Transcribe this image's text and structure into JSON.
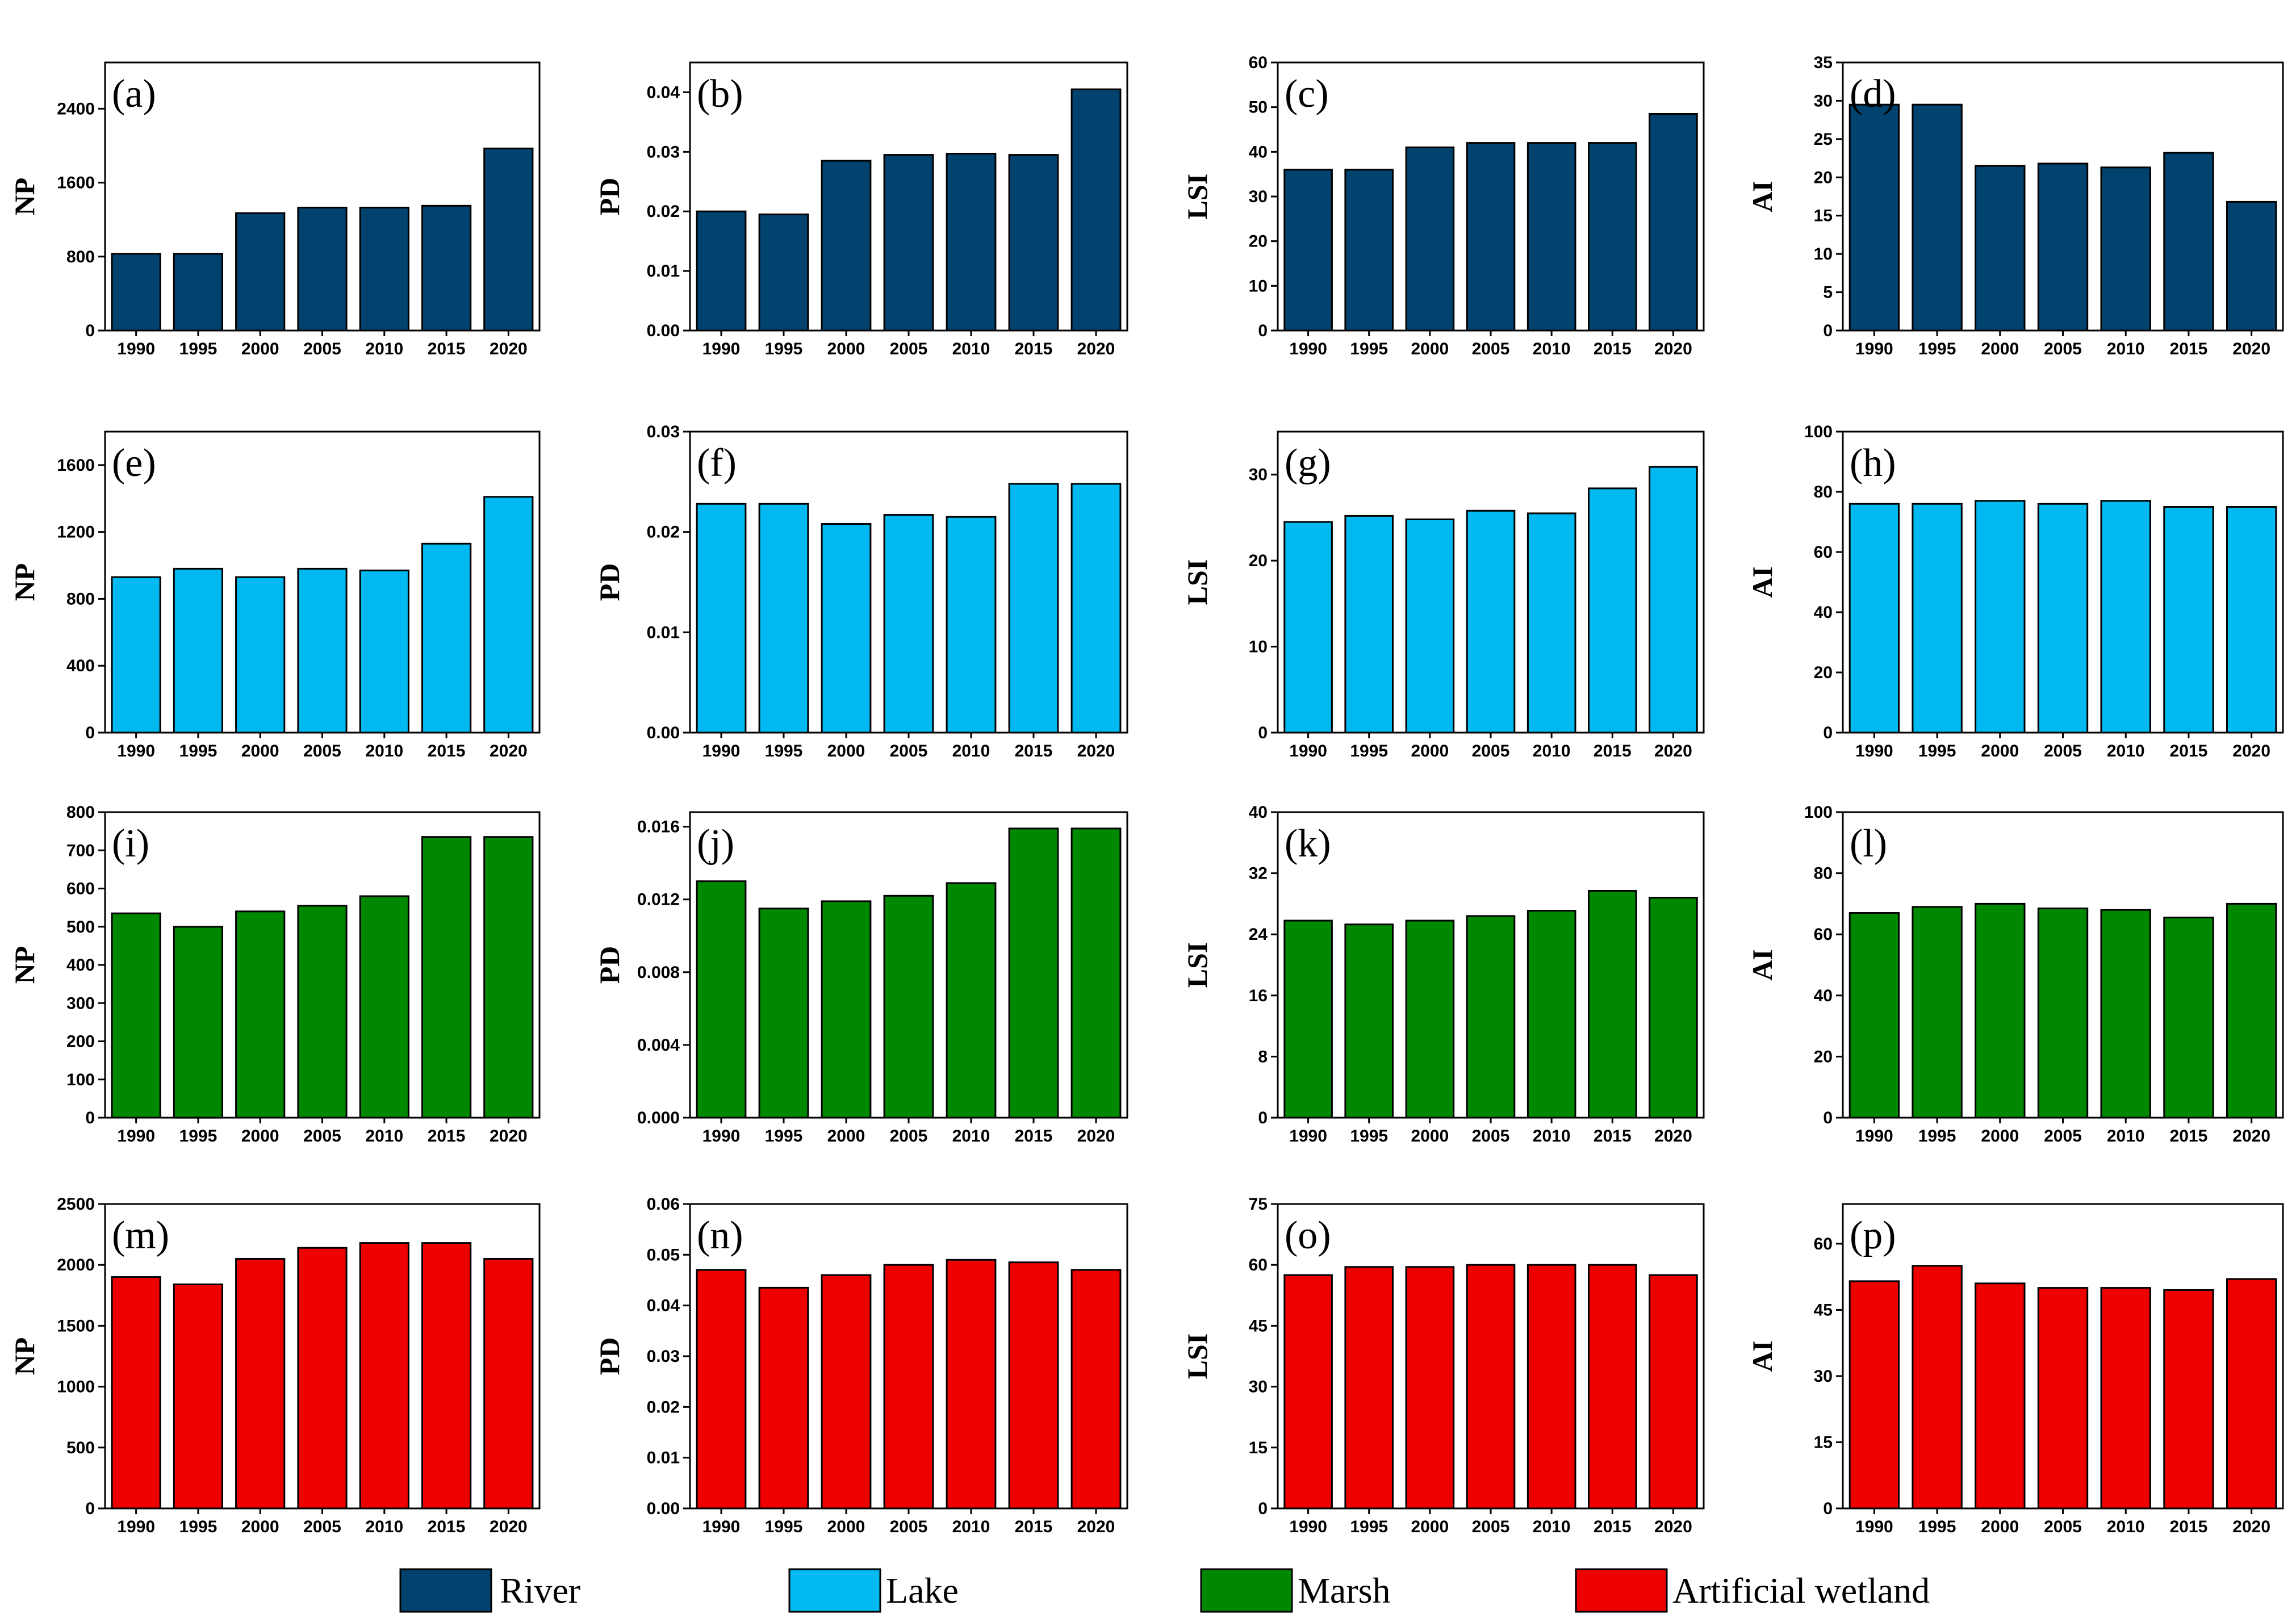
{
  "categories": [
    "1990",
    "1995",
    "2000",
    "2005",
    "2010",
    "2015",
    "2020"
  ],
  "colors": {
    "River": "#02426f",
    "Lake": "#00b9f1",
    "Marsh": "#008800",
    "Artificial wetland": "#ee0000"
  },
  "legend": [
    {
      "name": "River",
      "color": "#02426f"
    },
    {
      "name": "Lake",
      "color": "#00b9f1"
    },
    {
      "name": "Marsh",
      "color": "#008800"
    },
    {
      "name": "Artificial wetland",
      "color": "#ee0000"
    }
  ],
  "chart_data": [
    {
      "type": "bar",
      "panel": "(a)",
      "ylabel": "NP",
      "series": "River",
      "ylim": [
        0,
        2900
      ],
      "yticks": [
        "0",
        "800",
        "1600",
        "2400"
      ],
      "ytick_values": [
        0,
        800,
        1600,
        2400
      ],
      "values": [
        830,
        830,
        1270,
        1330,
        1330,
        1350,
        1970
      ]
    },
    {
      "type": "bar",
      "panel": "(b)",
      "ylabel": "PD",
      "series": "River",
      "ylim": [
        0,
        0.045
      ],
      "yticks": [
        "0.00",
        "0.01",
        "0.02",
        "0.03",
        "0.04"
      ],
      "ytick_values": [
        0,
        0.01,
        0.02,
        0.03,
        0.04
      ],
      "values": [
        0.02,
        0.0195,
        0.0285,
        0.0295,
        0.0297,
        0.0295,
        0.0405
      ]
    },
    {
      "type": "bar",
      "panel": "(c)",
      "ylabel": "LSI",
      "series": "River",
      "ylim": [
        0,
        60
      ],
      "yticks": [
        "0",
        "10",
        "20",
        "30",
        "40",
        "50",
        "60"
      ],
      "ytick_values": [
        0,
        10,
        20,
        30,
        40,
        50,
        60
      ],
      "values": [
        36,
        36,
        41,
        42,
        42,
        42,
        48.5
      ]
    },
    {
      "type": "bar",
      "panel": "(d)",
      "ylabel": "AI",
      "series": "River",
      "ylim": [
        0,
        35
      ],
      "yticks": [
        "0",
        "5",
        "10",
        "15",
        "20",
        "25",
        "30",
        "35"
      ],
      "ytick_values": [
        0,
        5,
        10,
        15,
        20,
        25,
        30,
        35
      ],
      "values": [
        29.5,
        29.5,
        21.5,
        21.8,
        21.3,
        23.2,
        16.8
      ]
    },
    {
      "type": "bar",
      "panel": "(e)",
      "ylabel": "NP",
      "series": "Lake",
      "ylim": [
        0,
        1800
      ],
      "yticks": [
        "0",
        "400",
        "800",
        "1200",
        "1600"
      ],
      "ytick_values": [
        0,
        400,
        800,
        1200,
        1600
      ],
      "values": [
        930,
        980,
        930,
        980,
        970,
        1130,
        1410
      ]
    },
    {
      "type": "bar",
      "panel": "(f)",
      "ylabel": "PD",
      "series": "Lake",
      "ylim": [
        0,
        0.03
      ],
      "yticks": [
        "0.00",
        "0.01",
        "0.02",
        "0.03"
      ],
      "ytick_values": [
        0,
        0.01,
        0.02,
        0.03
      ],
      "values": [
        0.0228,
        0.0228,
        0.0208,
        0.0217,
        0.0215,
        0.0248,
        0.0248
      ]
    },
    {
      "type": "bar",
      "panel": "(g)",
      "ylabel": "LSI",
      "series": "Lake",
      "ylim": [
        0,
        35
      ],
      "yticks": [
        "0",
        "10",
        "20",
        "30"
      ],
      "ytick_values": [
        0,
        10,
        20,
        30
      ],
      "values": [
        24.5,
        25.2,
        24.8,
        25.8,
        25.5,
        28.4,
        30.9
      ]
    },
    {
      "type": "bar",
      "panel": "(h)",
      "ylabel": "AI",
      "series": "Lake",
      "ylim": [
        0,
        100
      ],
      "yticks": [
        "0",
        "20",
        "40",
        "60",
        "80",
        "100"
      ],
      "ytick_values": [
        0,
        20,
        40,
        60,
        80,
        100
      ],
      "values": [
        76,
        76,
        77,
        76,
        77,
        75,
        75
      ]
    },
    {
      "type": "bar",
      "panel": "(i)",
      "ylabel": "NP",
      "series": "Marsh",
      "ylim": [
        0,
        800
      ],
      "yticks": [
        "0",
        "100",
        "200",
        "300",
        "400",
        "500",
        "600",
        "700",
        "800"
      ],
      "ytick_values": [
        0,
        100,
        200,
        300,
        400,
        500,
        600,
        700,
        800
      ],
      "values": [
        535,
        500,
        540,
        555,
        580,
        735,
        735
      ]
    },
    {
      "type": "bar",
      "panel": "(j)",
      "ylabel": "PD",
      "series": "Marsh",
      "ylim": [
        0,
        0.0168
      ],
      "yticks": [
        "0.000",
        "0.004",
        "0.008",
        "0.012",
        "0.016"
      ],
      "ytick_values": [
        0,
        0.004,
        0.008,
        0.012,
        0.016
      ],
      "values": [
        0.013,
        0.0115,
        0.0119,
        0.0122,
        0.0129,
        0.0159,
        0.0159
      ]
    },
    {
      "type": "bar",
      "panel": "(k)",
      "ylabel": "LSI",
      "series": "Marsh",
      "ylim": [
        0,
        40
      ],
      "yticks": [
        "0",
        "8",
        "16",
        "24",
        "32",
        "40"
      ],
      "ytick_values": [
        0,
        8,
        16,
        24,
        32,
        40
      ],
      "values": [
        25.8,
        25.3,
        25.8,
        26.4,
        27.1,
        29.7,
        28.8
      ]
    },
    {
      "type": "bar",
      "panel": "(l)",
      "ylabel": "AI",
      "series": "Marsh",
      "ylim": [
        0,
        100
      ],
      "yticks": [
        "0",
        "20",
        "40",
        "60",
        "80",
        "100"
      ],
      "ytick_values": [
        0,
        20,
        40,
        60,
        80,
        100
      ],
      "values": [
        67,
        69,
        70,
        68.5,
        68,
        65.5,
        70
      ]
    },
    {
      "type": "bar",
      "panel": "(m)",
      "ylabel": "NP",
      "series": "Artificial wetland",
      "ylim": [
        0,
        2500
      ],
      "yticks": [
        "0",
        "500",
        "1000",
        "1500",
        "2000",
        "2500"
      ],
      "ytick_values": [
        0,
        500,
        1000,
        1500,
        2000,
        2500
      ],
      "values": [
        1900,
        1840,
        2050,
        2140,
        2180,
        2180,
        2050
      ]
    },
    {
      "type": "bar",
      "panel": "(n)",
      "ylabel": "PD",
      "series": "Artificial wetland",
      "ylim": [
        0,
        0.06
      ],
      "yticks": [
        "0.00",
        "0.01",
        "0.02",
        "0.03",
        "0.04",
        "0.05",
        "0.06"
      ],
      "ytick_values": [
        0,
        0.01,
        0.02,
        0.03,
        0.04,
        0.05,
        0.06
      ],
      "values": [
        0.047,
        0.0435,
        0.046,
        0.048,
        0.049,
        0.0485,
        0.047
      ]
    },
    {
      "type": "bar",
      "panel": "(o)",
      "ylabel": "LSI",
      "series": "Artificial wetland",
      "ylim": [
        0,
        75
      ],
      "yticks": [
        "0",
        "15",
        "30",
        "45",
        "60",
        "75"
      ],
      "ytick_values": [
        0,
        15,
        30,
        45,
        60,
        75
      ],
      "values": [
        57.5,
        59.5,
        59.5,
        60,
        60,
        60,
        57.5
      ]
    },
    {
      "type": "bar",
      "panel": "(p)",
      "ylabel": "AI",
      "series": "Artificial wetland",
      "ylim": [
        0,
        69
      ],
      "yticks": [
        "0",
        "15",
        "30",
        "45",
        "60"
      ],
      "ytick_values": [
        0,
        15,
        30,
        45,
        60
      ],
      "values": [
        51.5,
        55,
        51,
        50,
        50,
        49.5,
        52
      ]
    }
  ]
}
